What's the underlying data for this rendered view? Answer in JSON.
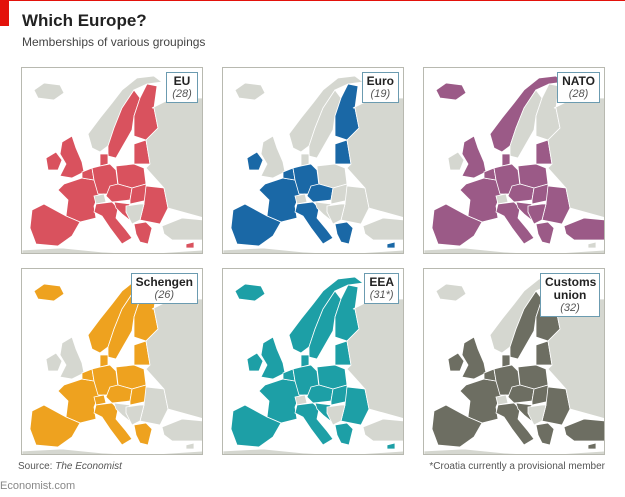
{
  "header": {
    "title": "Which Europe?",
    "subtitle": "Memberships of various groupings"
  },
  "colors": {
    "non_member_land": "#d5d7d0",
    "border": "#ffffff",
    "label_border": "#6b9bb0"
  },
  "panels": [
    {
      "name": "EU",
      "count": "(28)",
      "color": "#d9525e",
      "members": [
        "sweden",
        "finland",
        "denmark",
        "uk",
        "ireland",
        "france",
        "iberia",
        "benelux",
        "germany",
        "poland",
        "baltics",
        "czech_austria",
        "hungary_slovakia",
        "romania_bulgaria",
        "italy",
        "croatia",
        "greece",
        "cyprus"
      ]
    },
    {
      "name": "Euro",
      "count": "(19)",
      "color": "#1a68a6",
      "members": [
        "finland",
        "ireland",
        "france",
        "iberia",
        "benelux",
        "germany",
        "baltics",
        "czech_austria",
        "italy",
        "greece",
        "cyprus"
      ]
    },
    {
      "name": "NATO",
      "count": "(28)",
      "color": "#9b5a87",
      "members": [
        "iceland",
        "norway",
        "denmark",
        "uk",
        "france",
        "iberia",
        "benelux",
        "germany",
        "poland",
        "baltics",
        "czech_austria",
        "hungary_slovakia",
        "romania_bulgaria",
        "italy",
        "croatia",
        "balkans_rest",
        "greece",
        "turkey"
      ]
    },
    {
      "name": "Schengen",
      "count": "(26)",
      "color": "#eea21f",
      "members": [
        "iceland",
        "norway",
        "sweden",
        "finland",
        "denmark",
        "france",
        "iberia",
        "benelux",
        "germany",
        "switzerland",
        "poland",
        "baltics",
        "czech_austria",
        "hungary_slovakia",
        "italy",
        "greece"
      ]
    },
    {
      "name": "EEA",
      "count": "(31*)",
      "color": "#1d9fa6",
      "members": [
        "iceland",
        "norway",
        "sweden",
        "finland",
        "denmark",
        "uk",
        "ireland",
        "france",
        "iberia",
        "benelux",
        "germany",
        "poland",
        "baltics",
        "czech_austria",
        "hungary_slovakia",
        "romania_bulgaria",
        "italy",
        "croatia",
        "greece",
        "cyprus"
      ]
    },
    {
      "name": "Customs union",
      "count": "(32)",
      "color": "#6d6e62",
      "members": [
        "sweden",
        "finland",
        "denmark",
        "uk",
        "ireland",
        "france",
        "iberia",
        "benelux",
        "germany",
        "poland",
        "baltics",
        "czech_austria",
        "hungary_slovakia",
        "romania_bulgaria",
        "italy",
        "croatia",
        "greece",
        "cyprus",
        "turkey"
      ]
    }
  ],
  "footer": {
    "source_prefix": "Source: ",
    "source_name": "The Economist",
    "note": "*Croatia currently a provisional member",
    "site": "Economist.com"
  }
}
